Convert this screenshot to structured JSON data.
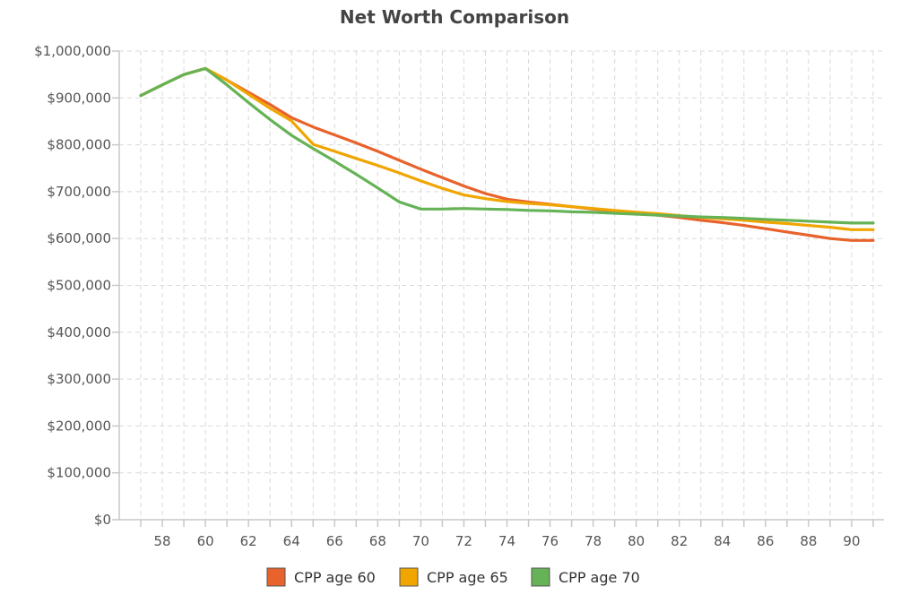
{
  "chart_data": {
    "type": "line",
    "title": "Net Worth Comparison",
    "xlabel": "",
    "ylabel": "",
    "x": [
      57,
      58,
      59,
      60,
      61,
      62,
      63,
      64,
      65,
      66,
      67,
      68,
      69,
      70,
      71,
      72,
      73,
      74,
      75,
      76,
      77,
      78,
      79,
      80,
      81,
      82,
      83,
      84,
      85,
      86,
      87,
      88,
      89,
      90,
      91
    ],
    "xlim": [
      56,
      91.5
    ],
    "ylim": [
      0,
      1000000
    ],
    "x_ticks": [
      "58",
      "60",
      "62",
      "64",
      "66",
      "68",
      "70",
      "72",
      "74",
      "76",
      "78",
      "80",
      "82",
      "84",
      "86",
      "88",
      "90"
    ],
    "y_ticks": [
      "$0",
      "$100,000",
      "$200,000",
      "$300,000",
      "$400,000",
      "$500,000",
      "$600,000",
      "$700,000",
      "$800,000",
      "$900,000",
      "$1,000,000"
    ],
    "grid": true,
    "legend_position": "bottom",
    "series": [
      {
        "name": "CPP age 60",
        "color": "#e8622b",
        "values": [
          905000,
          928000,
          950000,
          963000,
          938000,
          912000,
          886000,
          858000,
          838000,
          821000,
          804000,
          786000,
          767000,
          748000,
          730000,
          712000,
          696000,
          684000,
          678000,
          673000,
          668000,
          663000,
          659000,
          655000,
          650000,
          645000,
          639000,
          634000,
          628000,
          621000,
          614000,
          607000,
          600000,
          596000,
          596000
        ]
      },
      {
        "name": "CPP age 65",
        "color": "#f0a500",
        "values": [
          905000,
          928000,
          950000,
          963000,
          938000,
          908000,
          878000,
          851000,
          801000,
          786000,
          771000,
          756000,
          740000,
          723000,
          707000,
          693000,
          685000,
          679000,
          675000,
          672000,
          668000,
          664000,
          660000,
          656000,
          653000,
          649000,
          645000,
          642000,
          639000,
          635000,
          632000,
          628000,
          624000,
          619000,
          619000
        ]
      },
      {
        "name": "CPP age 70",
        "color": "#65b356",
        "values": [
          905000,
          928000,
          950000,
          963000,
          928000,
          890000,
          854000,
          820000,
          792000,
          765000,
          737000,
          708000,
          678000,
          663000,
          663000,
          664000,
          663000,
          662000,
          660000,
          659000,
          657000,
          656000,
          654000,
          652000,
          650000,
          648000,
          646000,
          645000,
          643000,
          641000,
          639000,
          637000,
          635000,
          633000,
          633000
        ]
      }
    ]
  }
}
